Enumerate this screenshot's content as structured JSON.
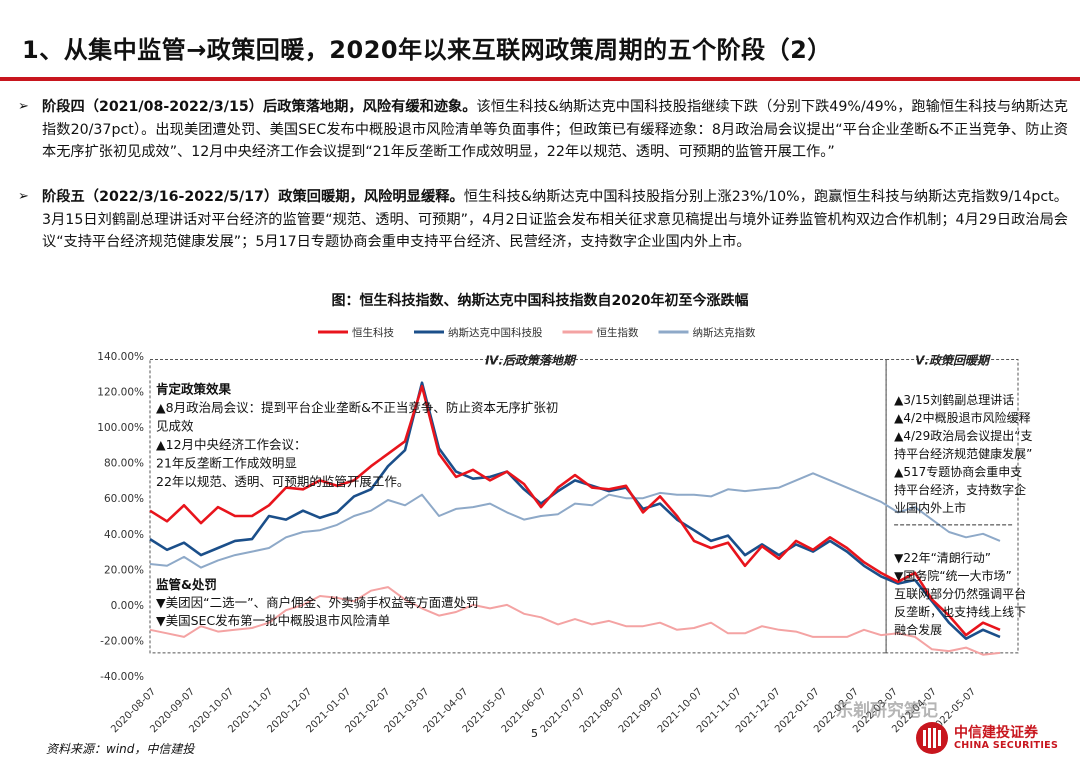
{
  "header": {
    "title": "1、从集中监管→政策回暖，2020年以来互联网政策周期的五个阶段（2）"
  },
  "bullets": [
    {
      "mark": "➢",
      "lead": "阶段四（2021/08-2022/3/15）后政策落地期，风险有缓和迹象。",
      "body": "该恒生科技&纳斯达克中国科技股指继续下跌（分别下跌49%/49%，跑输恒生科技与纳斯达克指数20/37pct）。出现美团遭处罚、美国SEC发布中概股退市风险清单等负面事件；但政策已有缓释迹象：8月政治局会议提出“平台企业垄断&不正当竞争、防止资本无序扩张初见成效”、12月中央经济工作会议提到“21年反垄断工作成效明显，22年以规范、透明、可预期的监管开展工作。”"
    },
    {
      "mark": "➢",
      "lead": "阶段五（2022/3/16-2022/5/17）政策回暖期，风险明显缓释。",
      "body": "恒生科技&纳斯达克中国科技股指分别上涨23%/10%，跑赢恒生科技与纳斯达克指数9/14pct。3月15日刘鹤副总理讲话对平台经济的监管要“规范、透明、可预期”，4月2日证监会发布相关征求意见稿提出与境外证券监管机构双边合作机制；4月29日政治局会议“支持平台经济规范健康发展”；5月17日专题协商会重申支持平台经济、民营经济，支持数字企业国内外上市。"
    }
  ],
  "figure": {
    "title": "图：恒生科技指数、纳斯达克中国科技指数自2020年初至今涨跌幅"
  },
  "chart_data": {
    "type": "line",
    "title": "图：恒生科技指数、纳斯达克中国科技指数自2020年初至今涨跌幅",
    "xlabel": "",
    "ylabel": "",
    "ylim": [
      -40,
      140
    ],
    "y_ticks": [
      "140.00%",
      "120.00%",
      "100.00%",
      "80.00%",
      "60.00%",
      "40.00%",
      "20.00%",
      "0.00%",
      "-20.00%",
      "-40.00%"
    ],
    "x_ticks": [
      "2020-08-07",
      "2020-09-07",
      "2020-10-07",
      "2020-11-07",
      "2020-12-07",
      "2021-01-07",
      "2021-02-07",
      "2021-03-07",
      "2021-04-07",
      "2021-05-07",
      "2021-06-07",
      "2021-07-07",
      "2021-08-07",
      "2021-09-07",
      "2021-10-07",
      "2021-11-07",
      "2021-12-07",
      "2022-01-07",
      "2022-02-07",
      "2022-03-07",
      "2022-04-07",
      "2022-05-07"
    ],
    "legend_position": "top",
    "series": [
      {
        "name": "恒生科技",
        "color": "#e8141c",
        "values": [
          53,
          47,
          56,
          46,
          55,
          50,
          50,
          56,
          66,
          65,
          70,
          67,
          70,
          78,
          85,
          92,
          123,
          85,
          72,
          76,
          70,
          75,
          68,
          55,
          66,
          73,
          66,
          65,
          67,
          52,
          61,
          50,
          36,
          32,
          35,
          22,
          33,
          26,
          36,
          31,
          38,
          32,
          24,
          18,
          13,
          18,
          3,
          -6,
          -17,
          -10,
          -14
        ]
      },
      {
        "name": "纳斯达克中国科技股",
        "color": "#1b4f8a",
        "values": [
          37,
          31,
          35,
          28,
          32,
          36,
          37,
          50,
          48,
          53,
          49,
          52,
          61,
          65,
          78,
          87,
          125,
          88,
          75,
          71,
          72,
          75,
          65,
          57,
          64,
          70,
          67,
          64,
          66,
          54,
          57,
          48,
          42,
          36,
          39,
          28,
          34,
          28,
          34,
          30,
          36,
          30,
          22,
          16,
          12,
          14,
          2,
          -10,
          -19,
          -14,
          -18
        ]
      },
      {
        "name": "恒生指数",
        "color": "#f4a3a3",
        "values": [
          -14,
          -16,
          -18,
          -12,
          -15,
          -14,
          -13,
          -10,
          -3,
          0,
          5,
          4,
          2,
          8,
          10,
          3,
          -2,
          -6,
          -4,
          0,
          -2,
          0,
          -5,
          -7,
          -11,
          -8,
          -11,
          -9,
          -12,
          -12,
          -10,
          -14,
          -13,
          -10,
          -16,
          -16,
          -12,
          -14,
          -15,
          -18,
          -18,
          -18,
          -14,
          -17,
          -16,
          -18,
          -25,
          -26,
          -24,
          -28,
          -27
        ]
      },
      {
        "name": "纳斯达克指数",
        "color": "#8ea9c8",
        "values": [
          23,
          22,
          27,
          21,
          25,
          28,
          30,
          32,
          38,
          41,
          42,
          45,
          50,
          53,
          59,
          56,
          62,
          50,
          54,
          55,
          57,
          52,
          48,
          50,
          51,
          57,
          56,
          62,
          60,
          60,
          63,
          62,
          62,
          61,
          65,
          64,
          65,
          66,
          70,
          74,
          70,
          66,
          62,
          58,
          52,
          55,
          48,
          41,
          38,
          40,
          36
        ]
      }
    ],
    "phase_labels": [
      "Ⅳ.后政策落地期",
      "Ⅴ.政策回暖期"
    ],
    "annotations": {
      "left_top": [
        "肯定政策效果",
        "▲8月政治局会议：提到平台企业垄断&不正当竞争、防止资本无序扩张初",
        "见成效",
        "▲12月中央经济工作会议：",
        "21年反垄断工作成效明显",
        "22年以规范、透明、可预期的监管开展工作。"
      ],
      "left_bottom": [
        "监管&处罚",
        "▼美团因“二选一”、商户佣金、外卖骑手权益等方面遭处罚",
        "▼美国SEC发布第一批中概股退市风险清单"
      ],
      "right_top": [
        "▲3/15刘鹤副总理讲话",
        "▲4/2中概股退市风险缓释",
        "▲4/29政治局会议提出“支",
        "持平台经济规范健康发展”",
        "▲517专题协商会重申支",
        "持平台经济，支持数字企",
        "业国内外上市"
      ],
      "right_bottom": [
        "▼22年“清朗行动”",
        "▼国务院“统一大市场”",
        "互联网部分仍然强调平台",
        "反垄断，也支持线上线下",
        "融合发展"
      ]
    }
  },
  "footer": {
    "source": "资料来源：wind，中信建投",
    "page": "5",
    "logo_cn": "中信建投证券",
    "logo_en": "CHINA SECURITIES",
    "watermark": "乐剃研究笔记"
  }
}
